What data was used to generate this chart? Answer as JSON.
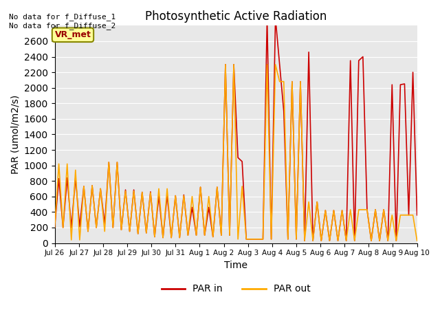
{
  "title": "Photosynthetic Active Radiation",
  "xlabel": "Time",
  "ylabel": "PAR (umol/m2/s)",
  "text_top_left": "No data for f_Diffuse_1\nNo data for f_Diffuse_2",
  "legend_labels": [
    "PAR in",
    "PAR out"
  ],
  "legend_colors": [
    "#cc0000",
    "#ffaa00"
  ],
  "annotation_box_label": "VR_met",
  "annotation_box_color": "#ffff99",
  "annotation_box_edge_color": "#888800",
  "annotation_text_color": "#990000",
  "ylim": [
    0,
    2800
  ],
  "background_color": "#e8e8e8",
  "grid_color": "#ffffff",
  "par_in": [
    200,
    830,
    200,
    840,
    200,
    840,
    210,
    730,
    150,
    740,
    200,
    700,
    240,
    1040,
    200,
    1040,
    170,
    685,
    150,
    685,
    120,
    655,
    130,
    660,
    80,
    610,
    70,
    620,
    70,
    610,
    70,
    620,
    100,
    460,
    100,
    720,
    100,
    460,
    80,
    720,
    100,
    2300,
    100,
    2300,
    1100,
    1050,
    50,
    50,
    50,
    50,
    50,
    2900,
    50,
    2900,
    2300,
    1700,
    50,
    2080,
    50,
    2080,
    30,
    2460,
    30,
    530,
    30,
    420,
    30,
    420,
    30,
    420,
    30,
    2350,
    30,
    2350,
    2400,
    430,
    30,
    430,
    30,
    430,
    30,
    2040,
    30,
    2040,
    2050,
    360,
    2200,
    360
  ],
  "par_out": [
    200,
    1020,
    200,
    1020,
    40,
    940,
    40,
    730,
    150,
    740,
    200,
    700,
    150,
    1040,
    200,
    1040,
    170,
    670,
    150,
    670,
    120,
    655,
    130,
    650,
    80,
    700,
    70,
    700,
    70,
    610,
    70,
    610,
    100,
    600,
    100,
    720,
    100,
    600,
    80,
    720,
    100,
    2300,
    100,
    2300,
    50,
    730,
    50,
    50,
    50,
    50,
    50,
    2300,
    50,
    2300,
    2080,
    2080,
    50,
    2080,
    50,
    2080,
    30,
    530,
    30,
    530,
    30,
    420,
    30,
    420,
    30,
    420,
    30,
    430,
    30,
    430,
    430,
    430,
    30,
    430,
    30,
    430,
    30,
    360,
    30,
    360,
    360,
    360,
    360,
    30
  ]
}
